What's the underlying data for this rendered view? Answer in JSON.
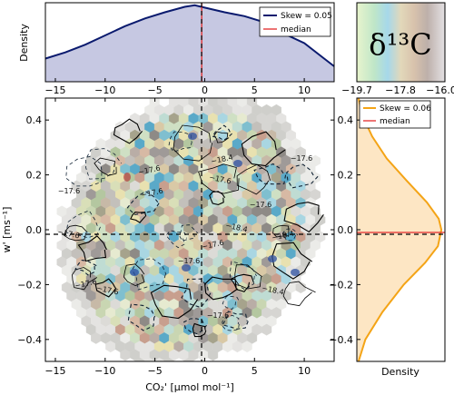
{
  "chart_data": [
    {
      "type": "area",
      "panel": "top-marginal",
      "ylabel": "Density",
      "xlim": [
        -16,
        13
      ],
      "xticks": [
        "−15",
        "−10",
        "−5",
        "0",
        "5",
        "10"
      ],
      "x": [
        -16,
        -14,
        -12,
        -10,
        -8,
        -6,
        -4,
        -2,
        -1,
        0,
        2,
        4,
        6,
        8,
        10,
        12,
        13
      ],
      "density": [
        0.3,
        0.38,
        0.48,
        0.6,
        0.72,
        0.82,
        0.9,
        0.97,
        0.99,
        0.96,
        0.9,
        0.85,
        0.77,
        0.62,
        0.5,
        0.3,
        0.2
      ],
      "legend": {
        "position": "top-right",
        "items": [
          {
            "label": "Skew = 0.05",
            "color": "#0a1a6e"
          },
          {
            "label": "median",
            "color": "#e32a2a"
          }
        ]
      },
      "median_x": -0.3,
      "colors": {
        "line": "#0a1a6e",
        "fill": "#c6c8e2"
      }
    },
    {
      "type": "heatmap",
      "panel": "colorbar",
      "title": "δ¹³C",
      "ticks": [
        "−19.7",
        "−17.8",
        "−16.0"
      ]
    },
    {
      "type": "scatter",
      "panel": "main",
      "xlabel": "CO₂' [μmol mol⁻¹]",
      "ylabel": "w' [ms⁻¹]",
      "xlim": [
        -16,
        13
      ],
      "ylim": [
        -0.48,
        0.48
      ],
      "xticks": [
        "−15",
        "−10",
        "−5",
        "0",
        "5",
        "10"
      ],
      "yticks": [
        "0.4",
        "0.2",
        "0.0",
        "−0.2",
        "−0.4"
      ],
      "contour_labels": [
        "−18.4",
        "−17.6",
        "−17.6",
        "−17.6",
        "−17.6",
        "−17.6",
        "−17.6",
        "−17.6",
        "−18.4",
        "−17.6",
        "−17.6",
        "−18.4",
        "−18.4",
        "−17.6",
        "−17.6",
        "−17.6"
      ]
    },
    {
      "type": "area",
      "panel": "right-marginal",
      "xlabel": "Density",
      "ylim": [
        -0.48,
        0.48
      ],
      "y": [
        -0.48,
        -0.4,
        -0.3,
        -0.2,
        -0.12,
        -0.06,
        0.0,
        0.04,
        0.1,
        0.18,
        0.26,
        0.34,
        0.42,
        0.48
      ],
      "density": [
        0.02,
        0.1,
        0.3,
        0.55,
        0.8,
        0.95,
        0.99,
        0.96,
        0.82,
        0.58,
        0.35,
        0.18,
        0.06,
        0.02
      ],
      "legend": {
        "position": "top-right",
        "items": [
          {
            "label": "Skew = 0.06",
            "color": "#f4a416"
          },
          {
            "label": "median",
            "color": "#e32a2a"
          }
        ]
      },
      "median_y": -0.01,
      "colors": {
        "line": "#f4a416",
        "fill": "#fde6c4"
      }
    }
  ]
}
